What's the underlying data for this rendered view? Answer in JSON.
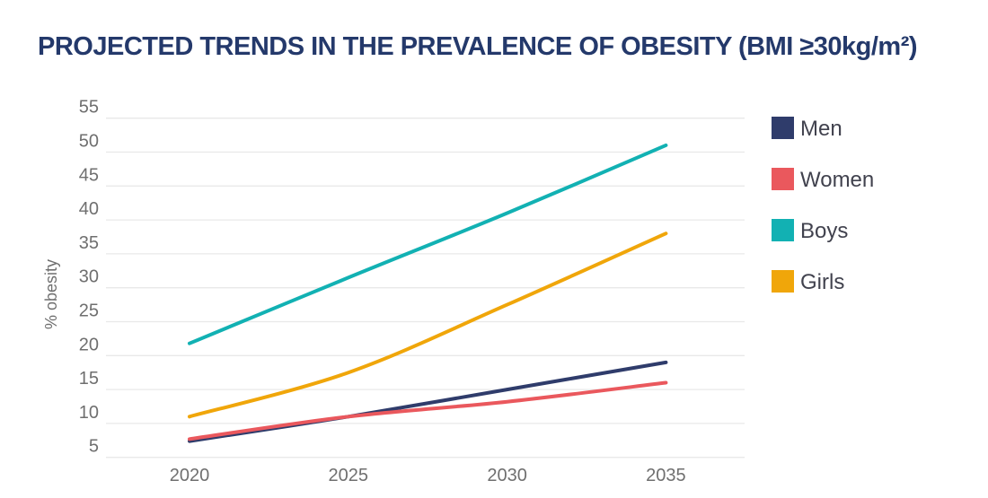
{
  "title": "PROJECTED TRENDS IN THE PREVALENCE OF OBESITY (BMI ≥30kg/m²)",
  "chart_data": {
    "type": "line",
    "x_labels": [
      "2020",
      "2025",
      "2030",
      "2035"
    ],
    "series": [
      {
        "name": "Men",
        "color": "#2F3C6B",
        "values": [
          7.4,
          11,
          15,
          19
        ]
      },
      {
        "name": "Women",
        "color": "#EA585D",
        "values": [
          7.7,
          11,
          13.2,
          16
        ]
      },
      {
        "name": "Boys",
        "color": "#12B1B3",
        "values": [
          21.8,
          31.5,
          41,
          51
        ]
      },
      {
        "name": "Girls",
        "color": "#F0A60A",
        "values": [
          11,
          17.5,
          27.5,
          38
        ]
      }
    ],
    "ylabel": "% obesity",
    "ylim": [
      5,
      55
    ],
    "yticks": [
      55,
      50,
      45,
      40,
      35,
      30,
      25,
      20,
      15,
      10,
      5
    ],
    "grid": true,
    "legend_position": "right"
  },
  "style": {
    "title_color": "#24396B",
    "grid_color": "#E9E9E9",
    "tick_color": "#6F6F6F",
    "legend_text_color": "#41424E",
    "background": "#FFFFFF"
  }
}
